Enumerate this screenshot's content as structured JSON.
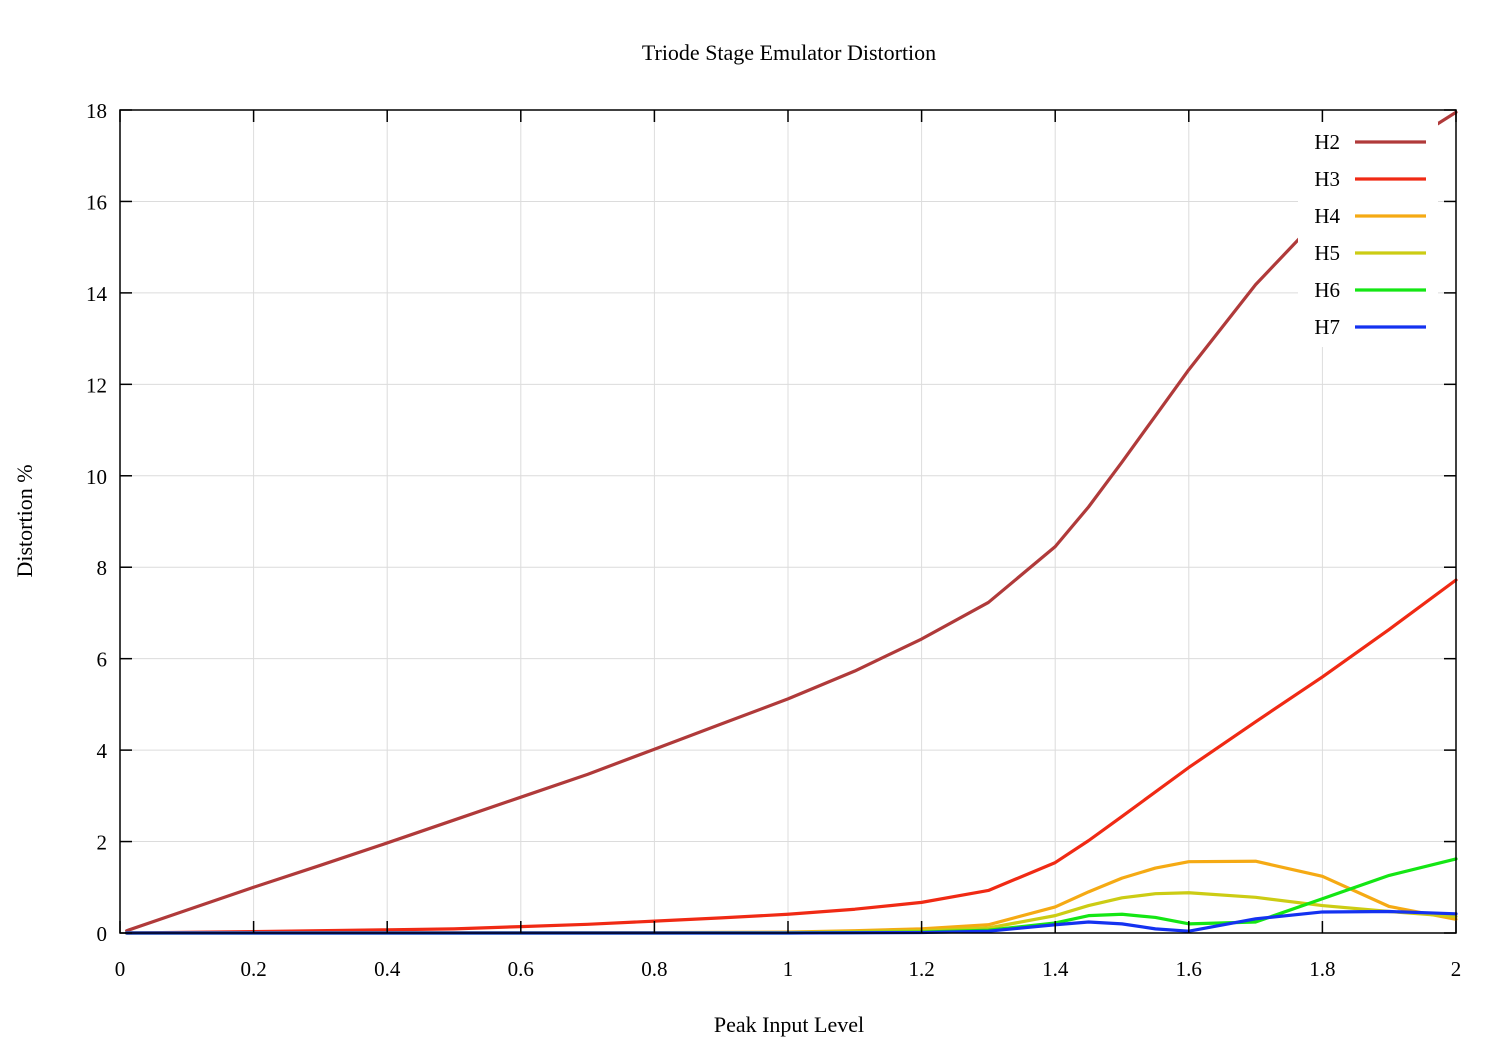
{
  "chart_data": {
    "type": "line",
    "title": "Triode Stage Emulator Distortion",
    "xlabel": "Peak Input Level",
    "ylabel": "Distortion %",
    "xlim": [
      0,
      2
    ],
    "ylim": [
      0,
      18
    ],
    "xticks": [
      "0",
      "0.2",
      "0.4",
      "0.6",
      "0.8",
      "1",
      "1.2",
      "1.4",
      "1.6",
      "1.8",
      "2"
    ],
    "yticks": [
      "0",
      "2",
      "4",
      "6",
      "8",
      "10",
      "12",
      "14",
      "16",
      "18"
    ],
    "grid": true,
    "legend_position": "top-right",
    "series": [
      {
        "name": "H2",
        "color": "#b03a3a",
        "x": [
          0.01,
          0.1,
          0.2,
          0.3,
          0.4,
          0.5,
          0.6,
          0.7,
          0.8,
          0.9,
          1.0,
          1.1,
          1.2,
          1.3,
          1.4,
          1.45,
          1.5,
          1.55,
          1.6,
          1.7,
          1.8,
          1.9,
          2.0
        ],
        "y": [
          0.05,
          0.5,
          1.0,
          1.48,
          1.97,
          2.47,
          2.97,
          3.47,
          4.02,
          4.57,
          5.12,
          5.73,
          6.43,
          7.23,
          8.45,
          9.32,
          10.3,
          11.31,
          12.32,
          14.18,
          15.72,
          17.03,
          17.95
        ]
      },
      {
        "name": "H3",
        "color": "#f02a14",
        "x": [
          0.01,
          0.2,
          0.4,
          0.5,
          0.6,
          0.7,
          0.8,
          0.9,
          1.0,
          1.1,
          1.2,
          1.3,
          1.4,
          1.45,
          1.5,
          1.6,
          1.7,
          1.8,
          1.9,
          2.0
        ],
        "y": [
          0.0,
          0.03,
          0.07,
          0.09,
          0.14,
          0.19,
          0.26,
          0.33,
          0.41,
          0.52,
          0.67,
          0.93,
          1.54,
          2.02,
          2.55,
          3.62,
          4.62,
          5.6,
          6.64,
          7.72
        ]
      },
      {
        "name": "H4",
        "color": "#f5aa14",
        "x": [
          0.01,
          0.8,
          1.0,
          1.1,
          1.2,
          1.3,
          1.4,
          1.45,
          1.5,
          1.55,
          1.6,
          1.7,
          1.8,
          1.9,
          2.0
        ],
        "y": [
          0.0,
          0.01,
          0.02,
          0.05,
          0.09,
          0.18,
          0.57,
          0.9,
          1.2,
          1.42,
          1.56,
          1.57,
          1.24,
          0.58,
          0.3
        ]
      },
      {
        "name": "H5",
        "color": "#cccc14",
        "x": [
          0.01,
          0.8,
          1.0,
          1.1,
          1.2,
          1.3,
          1.4,
          1.45,
          1.5,
          1.55,
          1.6,
          1.7,
          1.8,
          1.9,
          2.0
        ],
        "y": [
          0.0,
          0.0,
          0.01,
          0.03,
          0.05,
          0.11,
          0.38,
          0.6,
          0.77,
          0.86,
          0.88,
          0.78,
          0.6,
          0.47,
          0.36
        ]
      },
      {
        "name": "H6",
        "color": "#14e614",
        "x": [
          0.01,
          1.0,
          1.2,
          1.3,
          1.4,
          1.45,
          1.5,
          1.55,
          1.6,
          1.7,
          1.8,
          1.9,
          2.0
        ],
        "y": [
          0.0,
          0.0,
          0.02,
          0.06,
          0.22,
          0.38,
          0.41,
          0.34,
          0.2,
          0.24,
          0.75,
          1.26,
          1.62
        ]
      },
      {
        "name": "H7",
        "color": "#1432f0",
        "x": [
          0.01,
          1.0,
          1.2,
          1.3,
          1.4,
          1.45,
          1.5,
          1.55,
          1.6,
          1.7,
          1.8,
          1.9,
          2.0
        ],
        "y": [
          0.0,
          0.0,
          0.01,
          0.04,
          0.18,
          0.24,
          0.2,
          0.09,
          0.04,
          0.31,
          0.46,
          0.47,
          0.42
        ]
      }
    ]
  }
}
